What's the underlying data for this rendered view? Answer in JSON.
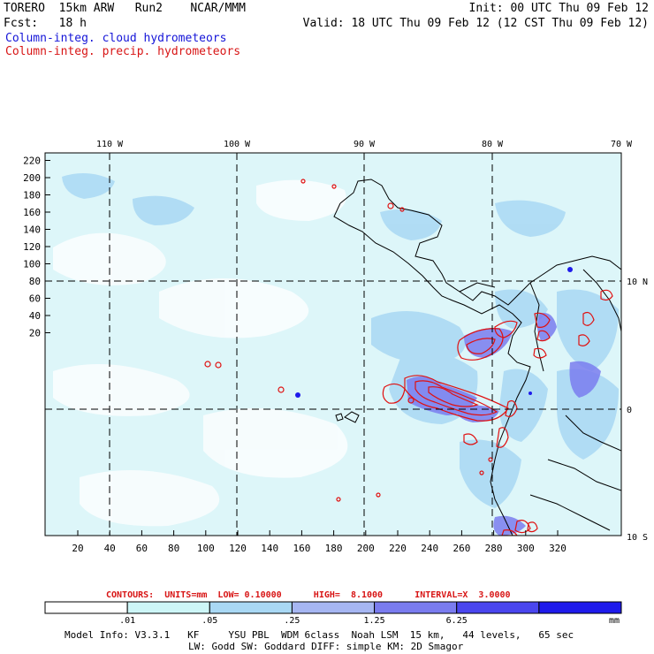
{
  "header": {
    "model": "TORERO  15km ARW   Run2    NCAR/MMM",
    "init": "Init: 00 UTC Thu 09 Feb 12",
    "fcst": "Fcst:   18 h",
    "valid": "Valid: 18 UTC Thu 09 Feb 12 (12 CST Thu 09 Feb 12)",
    "legend_cloud": "Column-integ. cloud hydrometeors",
    "legend_precip": "Column-integ. precip. hydrometeors"
  },
  "map": {
    "lon_labels": [
      "110 W",
      "100 W",
      "90 W",
      "80 W",
      "70 W"
    ],
    "lat_labels": [
      "10 N",
      "0",
      "10 S"
    ],
    "y_ticks": [
      "220",
      "200",
      "180",
      "160",
      "140",
      "120",
      "100",
      "80",
      "60",
      "40",
      "20"
    ],
    "x_ticks": [
      "20",
      "40",
      "60",
      "80",
      "100",
      "120",
      "140",
      "160",
      "180",
      "200",
      "220",
      "240",
      "260",
      "280",
      "300",
      "320"
    ]
  },
  "contour_info": {
    "label": "CONTOURS:  UNITS=mm  LOW= 0.10000      HIGH=  8.1000      INTERVAL=X  3.0000"
  },
  "colorbar": {
    "labels": [
      ".01",
      ".05",
      ".25",
      "1.25",
      "6.25"
    ],
    "units": "mm",
    "colors": [
      "#ffffff",
      "#cdf6f7",
      "#a9d8f4",
      "#a6b6f2",
      "#7a7cef",
      "#4a46ee",
      "#1e1aeb"
    ]
  },
  "footer": {
    "line1": "Model Info: V3.3.1   KF     YSU PBL  WDM 6class  Noah LSM  15 km,   44 levels,   65 sec",
    "line2": "LW: Godd SW: Goddard DIFF: simple KM: 2D Smagor"
  }
}
